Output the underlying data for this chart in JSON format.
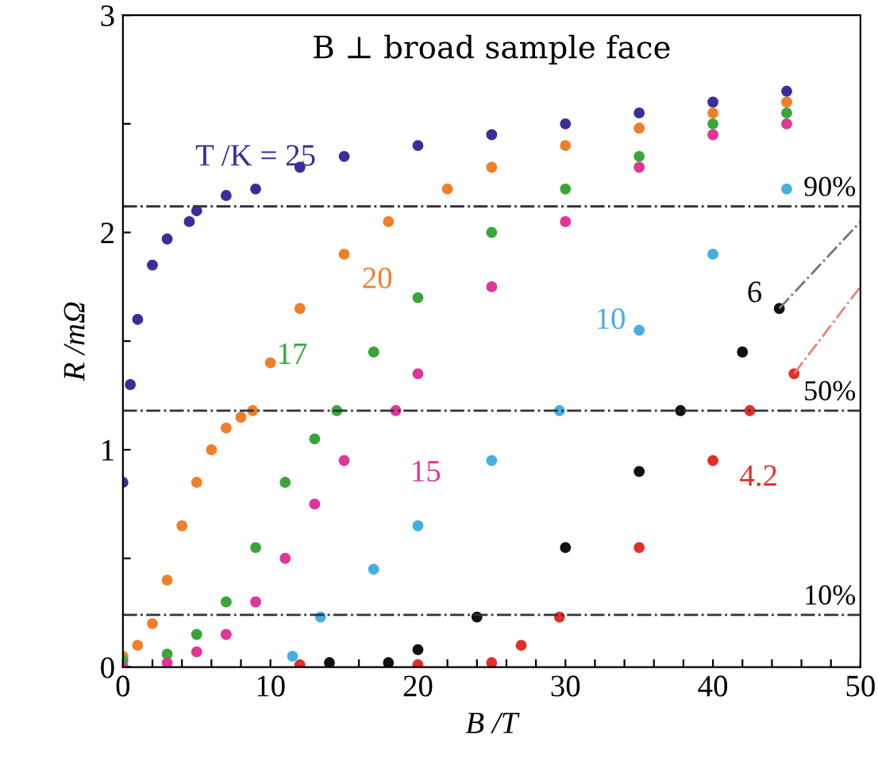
{
  "chart_data": {
    "type": "scatter",
    "title": "B ⊥ broad sample face",
    "xlabel": "B /T",
    "ylabel": "R /mΩ",
    "marker": "circle",
    "grid": false,
    "legend": false,
    "xlim": [
      0,
      50
    ],
    "ylim": [
      0,
      3
    ],
    "xticks": [
      0,
      {
        "value": 2,
        "label": null
      },
      {
        "value": 4,
        "label": null
      },
      {
        "value": 6,
        "label": null
      },
      {
        "value": 8,
        "label": null
      },
      10,
      {
        "value": 12,
        "label": null
      },
      {
        "value": 14,
        "label": null
      },
      {
        "value": 16,
        "label": null
      },
      {
        "value": 18,
        "label": null
      },
      20,
      {
        "value": 22,
        "label": null
      },
      {
        "value": 24,
        "label": null
      },
      {
        "value": 26,
        "label": null
      },
      {
        "value": 28,
        "label": null
      },
      30,
      {
        "value": 32,
        "label": null
      },
      {
        "value": 34,
        "label": null
      },
      {
        "value": 36,
        "label": null
      },
      {
        "value": 38,
        "label": null
      },
      40,
      {
        "value": 42,
        "label": null
      },
      {
        "value": 44,
        "label": null
      },
      {
        "value": 46,
        "label": null
      },
      {
        "value": 48,
        "label": null
      },
      50
    ],
    "yticks": [
      0,
      {
        "value": 0.5,
        "label": null
      },
      1,
      {
        "value": 1.5,
        "label": null
      },
      2,
      {
        "value": 2.5,
        "label": null
      },
      3
    ],
    "series": [
      {
        "color": "#3a2e9a",
        "x": [
          0,
          0.5,
          1,
          2,
          3,
          4.5,
          5,
          7,
          9,
          12,
          15,
          20,
          25,
          30,
          35,
          40,
          45
        ],
        "values": [
          0.85,
          1.3,
          1.6,
          1.85,
          1.97,
          2.05,
          2.1,
          2.17,
          2.2,
          2.3,
          2.35,
          2.4,
          2.45,
          2.5,
          2.55,
          2.6,
          2.65
        ]
      },
      {
        "color": "#f07f2a",
        "x": [
          0,
          1,
          2,
          3,
          4,
          5,
          6,
          7,
          8,
          8.8,
          10,
          12,
          15,
          18,
          22,
          25,
          30,
          35,
          40,
          45
        ],
        "values": [
          0.05,
          0.1,
          0.2,
          0.4,
          0.65,
          0.85,
          1.0,
          1.1,
          1.15,
          1.18,
          1.4,
          1.65,
          1.9,
          2.05,
          2.2,
          2.3,
          2.4,
          2.48,
          2.55,
          2.6
        ]
      },
      {
        "color": "#3aa63a",
        "x": [
          0,
          3,
          5,
          7,
          9,
          11,
          13,
          14.5,
          17,
          20,
          25,
          30,
          35,
          40,
          45
        ],
        "values": [
          0.03,
          0.06,
          0.15,
          0.3,
          0.55,
          0.85,
          1.05,
          1.18,
          1.45,
          1.7,
          2.0,
          2.2,
          2.35,
          2.5,
          2.55
        ]
      },
      {
        "color": "#e0359a",
        "x": [
          0,
          3,
          5,
          7,
          9,
          11,
          13,
          15,
          18.5,
          20,
          25,
          30,
          35,
          40,
          45
        ],
        "values": [
          0,
          0.02,
          0.07,
          0.15,
          0.3,
          0.5,
          0.75,
          0.95,
          1.18,
          1.35,
          1.75,
          2.05,
          2.3,
          2.45,
          2.5
        ]
      },
      {
        "color": "#45b0e0",
        "x": [
          11.5,
          13.4,
          17,
          20,
          25,
          29.6,
          35,
          40,
          45
        ],
        "values": [
          0.05,
          0.23,
          0.45,
          0.65,
          0.95,
          1.18,
          1.55,
          1.9,
          2.2
        ]
      },
      {
        "color": "#111111",
        "x": [
          14,
          18,
          20,
          24,
          30,
          35,
          37.8,
          42,
          44.5
        ],
        "values": [
          0.02,
          0.02,
          0.08,
          0.23,
          0.55,
          0.9,
          1.18,
          1.45,
          1.65
        ]
      },
      {
        "color": "#e03028",
        "x": [
          12,
          20,
          25,
          27,
          29.6,
          35,
          40,
          42.5,
          45.5
        ],
        "values": [
          0.01,
          0.01,
          0.02,
          0.1,
          0.23,
          0.55,
          0.95,
          1.18,
          1.35
        ]
      },
      {
        "type": "line",
        "marker": "none",
        "line_style": "dashed",
        "color": "#777777",
        "x": [
          44.5,
          50
        ],
        "values": [
          1.65,
          2.05
        ]
      },
      {
        "type": "line",
        "marker": "none",
        "line_style": "dashed",
        "color": "#f08070",
        "x": [
          45.5,
          50
        ],
        "values": [
          1.35,
          1.75
        ]
      }
    ],
    "ref_lines": [
      {
        "axis": "y",
        "value": 2.12,
        "color": "#333333",
        "line_style": "dashed"
      },
      {
        "axis": "y",
        "value": 1.18,
        "color": "#333333",
        "line_style": "dashed"
      },
      {
        "axis": "y",
        "value": 0.24,
        "color": "#333333",
        "line_style": "dashed"
      }
    ],
    "annotations": [
      {
        "text": "T /K = 25",
        "x": 9,
        "y": 2.2
      },
      {
        "text": "20",
        "x": 15,
        "y": 1.9
      },
      {
        "text": "17",
        "x": 17,
        "y": 1.45
      },
      {
        "text": "15",
        "x": 15,
        "y": 0.95
      },
      {
        "text": "10",
        "x": 35,
        "y": 1.55
      },
      {
        "text": "6",
        "x": 42,
        "y": 1.45
      },
      {
        "text": "4.2",
        "x": 40,
        "y": 0.95
      },
      {
        "text": "90%",
        "x": 50,
        "y": 2.12
      },
      {
        "text": "50%",
        "x": 50,
        "y": 1.18
      },
      {
        "text": "10%",
        "x": 50,
        "y": 0.24
      }
    ]
  }
}
